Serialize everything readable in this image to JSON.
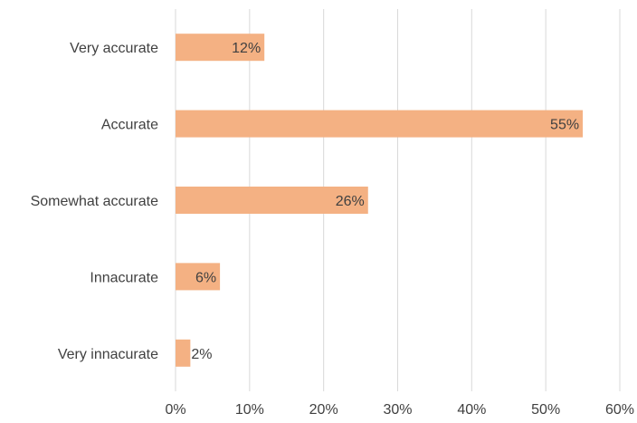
{
  "chart_data": {
    "type": "bar",
    "orientation": "horizontal",
    "categories": [
      "Very accurate",
      "Accurate",
      "Somewhat accurate",
      "Innacurate",
      "Very innacurate"
    ],
    "values": [
      12,
      55,
      26,
      6,
      2
    ],
    "data_labels": [
      "12%",
      "55%",
      "26%",
      "6%",
      "2%"
    ],
    "x_ticks": [
      "0%",
      "10%",
      "20%",
      "30%",
      "40%",
      "50%",
      "60%"
    ],
    "xlim": [
      0,
      60
    ],
    "grid": "vertical",
    "legend": "none",
    "colors": {
      "bar": "#F4B183",
      "grid": "#D9D9D9",
      "text": "#404040"
    }
  }
}
